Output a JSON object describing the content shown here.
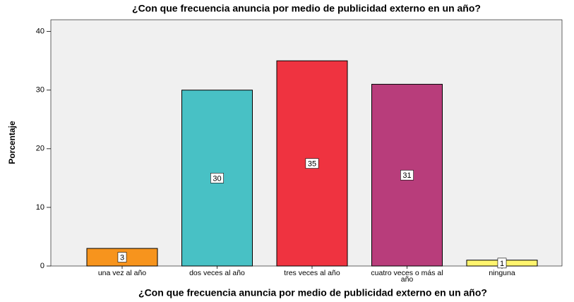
{
  "chart_data": {
    "type": "bar",
    "title": "¿Con que frecuencia anuncia por medio de publicidad externo en un año?",
    "x_label": "¿Con que frecuencia anuncia por medio de publicidad externo en un año?",
    "y_label": "Porcentaje",
    "categories": [
      "una vez al año",
      "dos veces al año",
      "tres veces al año",
      "cuatro veces o más al año",
      "ninguna"
    ],
    "values": [
      3,
      30,
      35,
      31,
      1
    ],
    "colors": [
      "#f7941d",
      "#48c1c5",
      "#ef3340",
      "#b83d7b",
      "#fff46e"
    ],
    "ylim": [
      0,
      42
    ],
    "yticks": [
      0,
      10,
      20,
      30,
      40
    ],
    "grid": false
  }
}
